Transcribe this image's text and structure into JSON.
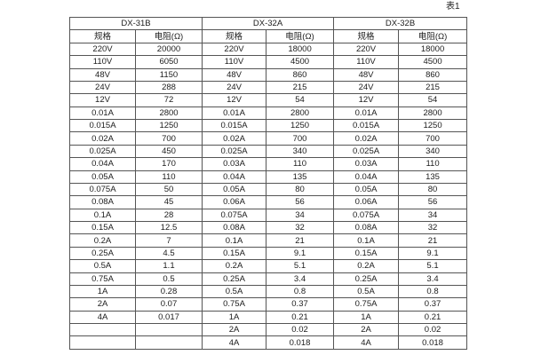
{
  "caption": "表1",
  "colors": {
    "background": "#ffffff",
    "border": "#555555",
    "text": "#1c1c1c"
  },
  "table": {
    "groups": [
      {
        "name": "DX-31B",
        "spec_header": "规格",
        "res_header": "电阻(Ω)",
        "rows": [
          [
            "220V",
            "20000"
          ],
          [
            "110V",
            "6050"
          ],
          [
            "48V",
            "1150"
          ],
          [
            "24V",
            "288"
          ],
          [
            "12V",
            "72"
          ],
          [
            "0.01A",
            "2800"
          ],
          [
            "0.015A",
            "1250"
          ],
          [
            "0.02A",
            "700"
          ],
          [
            "0.025A",
            "450"
          ],
          [
            "0.04A",
            "170"
          ],
          [
            "0.05A",
            "110"
          ],
          [
            "0.075A",
            "50"
          ],
          [
            "0.08A",
            "45"
          ],
          [
            "0.1A",
            "28"
          ],
          [
            "0.15A",
            "12.5"
          ],
          [
            "0.2A",
            "7"
          ],
          [
            "0.25A",
            "4.5"
          ],
          [
            "0.5A",
            "1.1"
          ],
          [
            "0.75A",
            "0.5"
          ],
          [
            "1A",
            "0.28"
          ],
          [
            "2A",
            "0.07"
          ],
          [
            "4A",
            "0.017"
          ],
          [
            "",
            ""
          ],
          [
            "",
            ""
          ]
        ]
      },
      {
        "name": "DX-32A",
        "spec_header": "规格",
        "res_header": "电阻(Ω)",
        "rows": [
          [
            "220V",
            "18000"
          ],
          [
            "110V",
            "4500"
          ],
          [
            "48V",
            "860"
          ],
          [
            "24V",
            "215"
          ],
          [
            "12V",
            "54"
          ],
          [
            "0.01A",
            "2800"
          ],
          [
            "0.015A",
            "1250"
          ],
          [
            "0.02A",
            "700"
          ],
          [
            "0.025A",
            "340"
          ],
          [
            "0.03A",
            "110"
          ],
          [
            "0.04A",
            "135"
          ],
          [
            "0.05A",
            "80"
          ],
          [
            "0.06A",
            "56"
          ],
          [
            "0.075A",
            "34"
          ],
          [
            "0.08A",
            "32"
          ],
          [
            "0.1A",
            "21"
          ],
          [
            "0.15A",
            "9.1"
          ],
          [
            "0.2A",
            "5.1"
          ],
          [
            "0.25A",
            "3.4"
          ],
          [
            "0.5A",
            "0.8"
          ],
          [
            "0.75A",
            "0.37"
          ],
          [
            "1A",
            "0.21"
          ],
          [
            "2A",
            "0.02"
          ],
          [
            "4A",
            "0.018"
          ]
        ]
      },
      {
        "name": "DX-32B",
        "spec_header": "规格",
        "res_header": "电阻(Ω)",
        "rows": [
          [
            "220V",
            "18000"
          ],
          [
            "110V",
            "4500"
          ],
          [
            "48V",
            "860"
          ],
          [
            "24V",
            "215"
          ],
          [
            "12V",
            "54"
          ],
          [
            "0.01A",
            "2800"
          ],
          [
            "0.015A",
            "1250"
          ],
          [
            "0.02A",
            "700"
          ],
          [
            "0.025A",
            "340"
          ],
          [
            "0.03A",
            "110"
          ],
          [
            "0.04A",
            "135"
          ],
          [
            "0.05A",
            "80"
          ],
          [
            "0.06A",
            "56"
          ],
          [
            "0.075A",
            "34"
          ],
          [
            "0.08A",
            "32"
          ],
          [
            "0.1A",
            "21"
          ],
          [
            "0.15A",
            "9.1"
          ],
          [
            "0.2A",
            "5.1"
          ],
          [
            "0.25A",
            "3.4"
          ],
          [
            "0.5A",
            "0.8"
          ],
          [
            "0.75A",
            "0.37"
          ],
          [
            "1A",
            "0.21"
          ],
          [
            "2A",
            "0.02"
          ],
          [
            "4A",
            "0.018"
          ]
        ]
      }
    ]
  }
}
